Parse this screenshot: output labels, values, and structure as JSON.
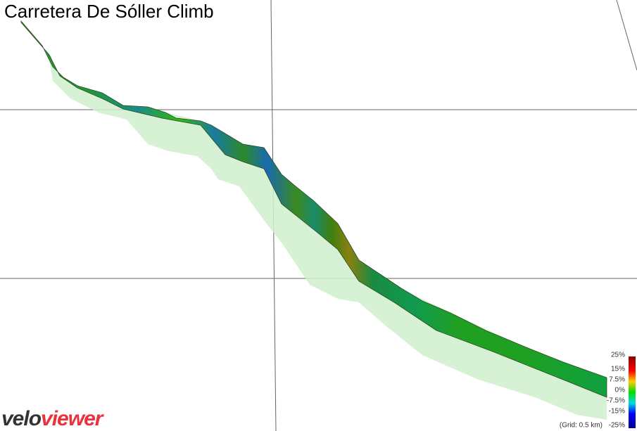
{
  "header": {
    "title": "Carretera De Sóller Climb"
  },
  "legend": {
    "labels": [
      "25%",
      "15%",
      "7.5%",
      "0%",
      "-7.5%",
      "-15%",
      "-25%"
    ],
    "note": "(Grid: 0.5 km)"
  },
  "logo": {
    "part1": "velo",
    "part2": "viewer"
  }
}
